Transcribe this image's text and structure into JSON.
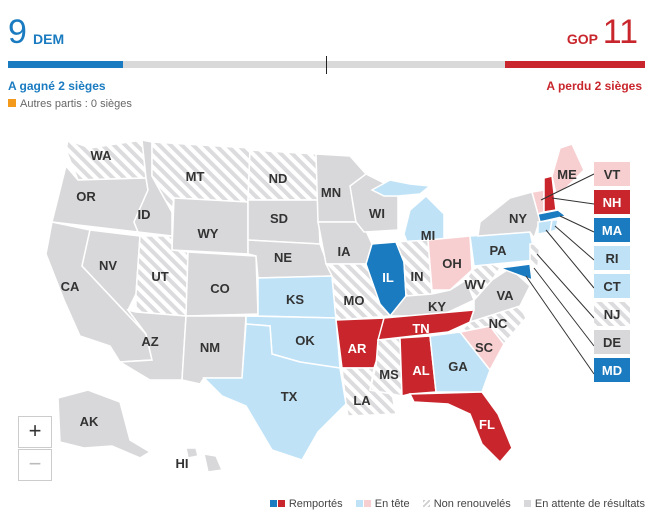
{
  "header": {
    "dem_count": "9",
    "dem_label": "DEM",
    "gop_label": "GOP",
    "gop_count": "11",
    "dem_status": "A gagné 2 sièges",
    "gop_status": "A perdu 2 sièges",
    "others": "Autres partis : 0 sièges",
    "dem_share": 0.18,
    "gop_share": 0.22
  },
  "colors": {
    "won_dem": "#1a7bc0",
    "won_gop": "#c8262c",
    "lead_dem": "#bfe2f7",
    "lead_gop": "#f8cfd0",
    "pending": "#d8d8da",
    "others": "#f39a1c"
  },
  "states": {
    "WA": "WA",
    "OR": "OR",
    "CA": "CA",
    "NV": "NV",
    "ID": "ID",
    "MT": "MT",
    "WY": "WY",
    "UT": "UT",
    "CO": "CO",
    "AZ": "AZ",
    "NM": "NM",
    "ND": "ND",
    "SD": "SD",
    "NE": "NE",
    "KS": "KS",
    "OK": "OK",
    "TX": "TX",
    "MN": "MN",
    "IA": "IA",
    "MO": "MO",
    "AR": "AR",
    "LA": "LA",
    "WI": "WI",
    "IL": "IL",
    "MI": "MI",
    "IN": "IN",
    "OH": "OH",
    "KY": "KY",
    "TN": "TN",
    "MS": "MS",
    "AL": "AL",
    "GA": "GA",
    "FL": "FL",
    "SC": "SC",
    "NC": "NC",
    "VA": "VA",
    "WV": "WV",
    "PA": "PA",
    "NY": "NY",
    "ME": "ME",
    "AK": "AK",
    "HI": "HI"
  },
  "small_states": [
    {
      "code": "VT",
      "status": "lead_gop"
    },
    {
      "code": "NH",
      "status": "won_gop"
    },
    {
      "code": "MA",
      "status": "won_dem"
    },
    {
      "code": "RI",
      "status": "lead_dem"
    },
    {
      "code": "CT",
      "status": "lead_dem"
    },
    {
      "code": "NJ",
      "status": "not_up"
    },
    {
      "code": "DE",
      "status": "pending"
    },
    {
      "code": "MD",
      "status": "won_dem"
    }
  ],
  "zoom": {
    "in": "+",
    "out": "−"
  },
  "legend": {
    "won": "Remportés",
    "leading": "En tête",
    "not_up": "Non renouvelés",
    "pending": "En attente de résultats"
  }
}
